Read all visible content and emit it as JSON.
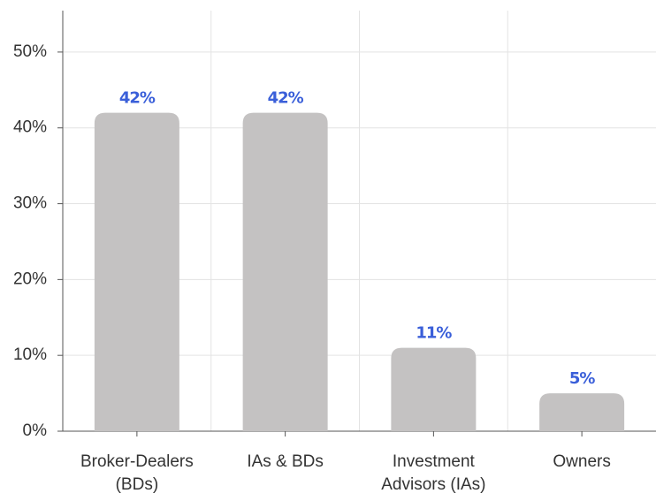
{
  "chart_data": {
    "type": "bar",
    "categories": [
      "Broker-Dealers (BDs)",
      "IAs & BDs",
      "Investment Advisors (IAs)",
      "Owners"
    ],
    "values": [
      42,
      42,
      11,
      5
    ],
    "value_labels": [
      "42%",
      "42%",
      "11%",
      "5%"
    ],
    "color": "#c4c2c2",
    "label_color": "#3a5fd9",
    "ylim": [
      0,
      55
    ],
    "yticks": [
      {
        "value": 0,
        "label": "0%"
      },
      {
        "value": 10,
        "label": "10%"
      },
      {
        "value": 20,
        "label": "20%"
      },
      {
        "value": 30,
        "label": "30%"
      },
      {
        "value": 40,
        "label": "40%"
      },
      {
        "value": 50,
        "label": "50%"
      }
    ],
    "grid": true
  }
}
